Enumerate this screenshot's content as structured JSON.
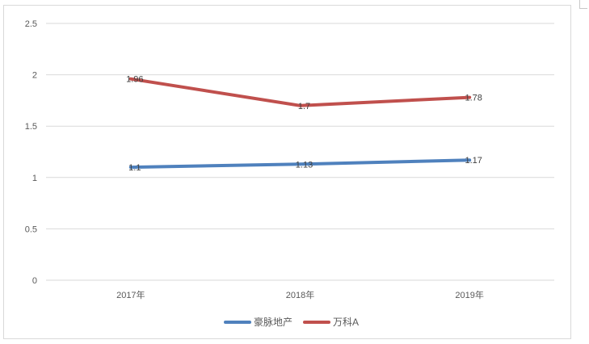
{
  "chart_data": {
    "type": "line",
    "categories": [
      "2017年",
      "2018年",
      "2019年"
    ],
    "series": [
      {
        "name": "豪脉地产",
        "values": [
          1.1,
          1.13,
          1.17
        ],
        "color": "#4f81bd"
      },
      {
        "name": "万科A",
        "values": [
          1.96,
          1.7,
          1.78
        ],
        "color": "#c0504d"
      }
    ],
    "title": "",
    "xlabel": "",
    "ylabel": "",
    "ylim": [
      0,
      2.5
    ],
    "yticks": [
      "0",
      "0.5",
      "1",
      "1.5",
      "2",
      "2.5"
    ],
    "data_labels": [
      [
        "1.1",
        "1.13",
        "1.17"
      ],
      [
        "1.96",
        "1.7",
        "1.78"
      ]
    ],
    "grid": true,
    "legend": "bottom"
  }
}
